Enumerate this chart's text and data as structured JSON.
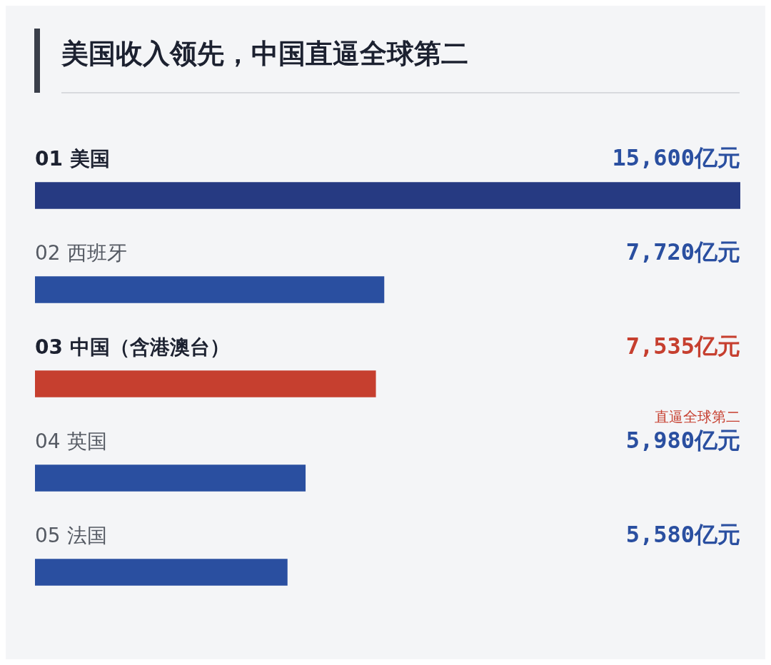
{
  "chart_data": {
    "type": "bar",
    "orientation": "horizontal",
    "title": "美国收入领先，中国直逼全球第二",
    "categories": [
      "01 美国",
      "02 西班牙",
      "03 中国（含港澳台）",
      "04 英国",
      "05 法国"
    ],
    "values": [
      15600,
      7720,
      7535,
      5980,
      5580
    ],
    "colors": [
      "#263a82",
      "#2a4fa0",
      "#c63f2f",
      "#2a4fa0",
      "#2a4fa0"
    ],
    "value_labels": [
      "15,600亿元",
      "7,720亿元",
      "7,535亿元",
      "5,980亿元",
      "5,580亿元"
    ],
    "xlim": [
      0,
      15600
    ],
    "annotations": [
      "直逼全球第二"
    ],
    "legend": false
  }
}
